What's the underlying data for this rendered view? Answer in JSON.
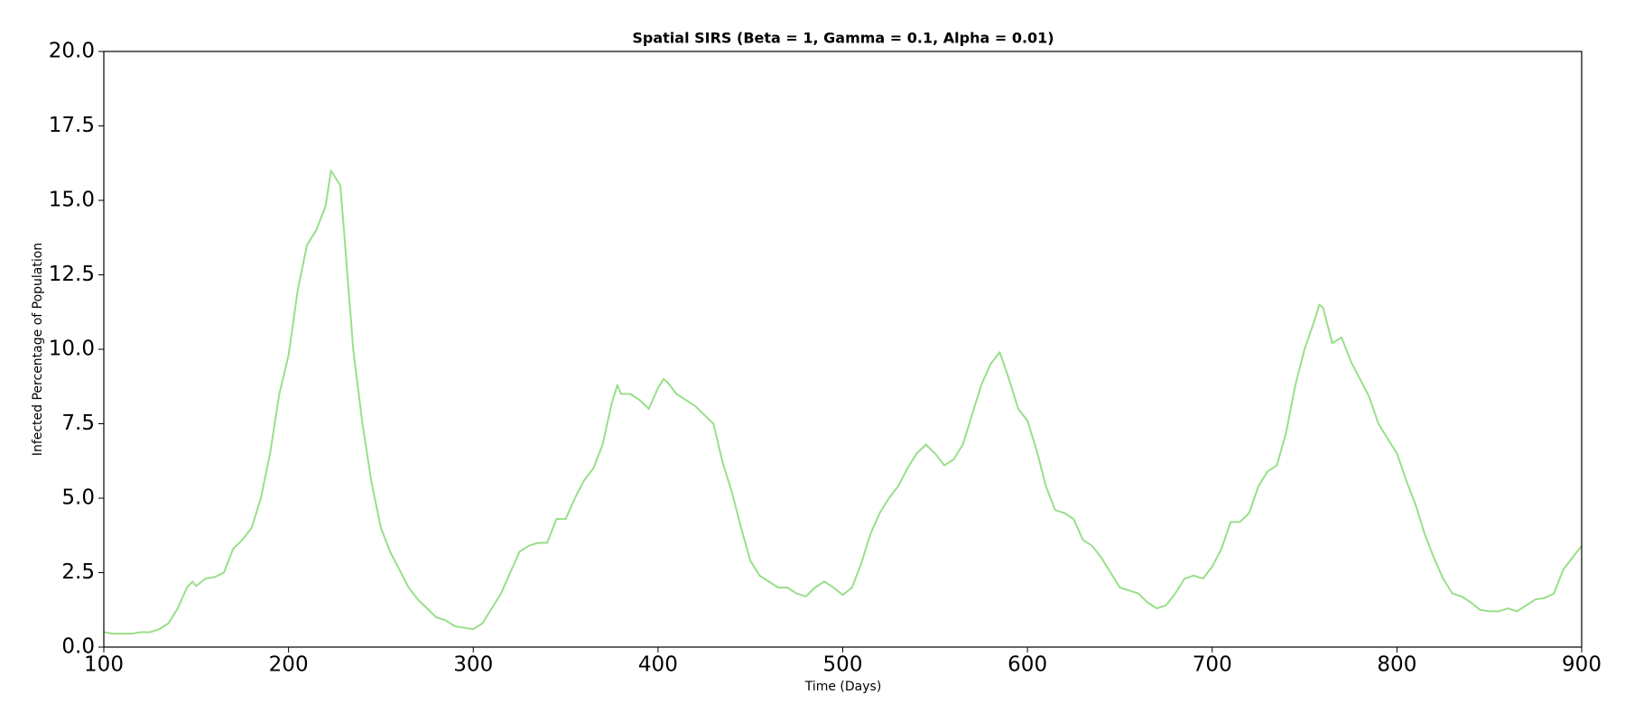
{
  "chart_data": {
    "type": "line",
    "title": "Spatial SIRS (Beta = 1, Gamma = 0.1, Alpha = 0.01)",
    "x_label": "Time (Days)",
    "y_label": "Infected Percentage of Population",
    "color": "#98df8a",
    "x": [
      100,
      105,
      110,
      115,
      120,
      125,
      130,
      135,
      140,
      145,
      148,
      150,
      155,
      160,
      165,
      170,
      175,
      180,
      185,
      190,
      195,
      200,
      205,
      210,
      215,
      220,
      223,
      225,
      228,
      230,
      235,
      240,
      245,
      250,
      255,
      260,
      265,
      270,
      275,
      280,
      285,
      290,
      295,
      300,
      305,
      310,
      315,
      320,
      325,
      330,
      335,
      340,
      345,
      350,
      355,
      360,
      365,
      370,
      375,
      378,
      380,
      385,
      390,
      395,
      400,
      403,
      405,
      410,
      415,
      420,
      425,
      430,
      435,
      440,
      445,
      450,
      455,
      460,
      465,
      470,
      475,
      480,
      485,
      490,
      495,
      500,
      505,
      510,
      515,
      520,
      525,
      530,
      535,
      540,
      545,
      550,
      555,
      560,
      565,
      570,
      575,
      580,
      585,
      590,
      595,
      600,
      605,
      610,
      615,
      620,
      625,
      630,
      635,
      640,
      645,
      650,
      655,
      660,
      665,
      670,
      675,
      680,
      685,
      690,
      695,
      700,
      705,
      710,
      715,
      720,
      725,
      730,
      735,
      740,
      745,
      750,
      755,
      758,
      760,
      765,
      770,
      775,
      780,
      785,
      790,
      795,
      800,
      805,
      810,
      815,
      820,
      825,
      830,
      835,
      840,
      845,
      850,
      855,
      860,
      865,
      870,
      875,
      880,
      885,
      890,
      895,
      900
    ],
    "values": [
      0.5,
      0.45,
      0.45,
      0.45,
      0.5,
      0.5,
      0.6,
      0.8,
      1.3,
      2.0,
      2.2,
      2.05,
      2.3,
      2.35,
      2.5,
      3.3,
      3.6,
      4.0,
      5.0,
      6.5,
      8.5,
      9.8,
      12.0,
      13.5,
      14.0,
      14.8,
      16.0,
      15.8,
      15.5,
      14.0,
      10.0,
      7.5,
      5.5,
      4.0,
      3.2,
      2.6,
      2.0,
      1.6,
      1.3,
      1.0,
      0.9,
      0.7,
      0.65,
      0.6,
      0.8,
      1.3,
      1.8,
      2.5,
      3.2,
      3.4,
      3.5,
      3.5,
      4.3,
      4.3,
      5.0,
      5.6,
      6.0,
      6.8,
      8.2,
      8.8,
      8.5,
      8.5,
      8.3,
      8.0,
      8.7,
      9.0,
      8.9,
      8.5,
      8.3,
      8.1,
      7.8,
      7.5,
      6.2,
      5.2,
      4.0,
      2.9,
      2.4,
      2.2,
      2.0,
      2.0,
      1.8,
      1.7,
      2.0,
      2.2,
      2.0,
      1.75,
      2.0,
      2.8,
      3.8,
      4.5,
      5.0,
      5.4,
      6.0,
      6.5,
      6.8,
      6.5,
      6.1,
      6.3,
      6.8,
      7.8,
      8.8,
      9.5,
      9.9,
      9.0,
      8.0,
      7.6,
      6.6,
      5.4,
      4.6,
      4.5,
      4.3,
      3.6,
      3.4,
      3.0,
      2.5,
      2.0,
      1.9,
      1.8,
      1.5,
      1.3,
      1.4,
      1.8,
      2.3,
      2.4,
      2.3,
      2.7,
      3.3,
      4.2,
      4.2,
      4.5,
      5.4,
      5.9,
      6.1,
      7.2,
      8.8,
      10.0,
      10.9,
      11.5,
      11.4,
      10.2,
      10.4,
      9.6,
      9.0,
      8.4,
      7.5,
      7.0,
      6.5,
      5.6,
      4.8,
      3.8,
      3.0,
      2.3,
      1.8,
      1.7,
      1.5,
      1.25,
      1.2,
      1.2,
      1.3,
      1.2,
      1.4,
      1.6,
      1.65,
      1.8,
      2.6,
      3.0,
      3.4
    ],
    "xlim": [
      100,
      900
    ],
    "xticks": [
      100,
      200,
      300,
      400,
      500,
      600,
      700,
      800,
      900
    ],
    "ylim": [
      0,
      20
    ],
    "yticks": [
      {
        "value": 0,
        "label": "0.0"
      },
      2.5,
      {
        "value": 5,
        "label": "5.0"
      },
      7.5,
      {
        "value": 10,
        "label": "10.0"
      },
      12.5,
      {
        "value": 15,
        "label": "15.0"
      },
      17.5,
      {
        "value": 20,
        "label": "20.0"
      }
    ],
    "grid": false
  }
}
